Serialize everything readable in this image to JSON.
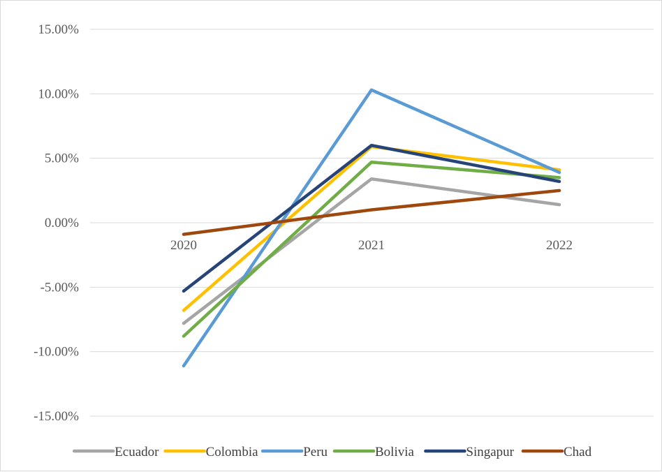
{
  "chart_data": {
    "type": "line",
    "title": "",
    "xlabel": "",
    "ylabel": "",
    "categories": [
      "2020",
      "2021",
      "2022"
    ],
    "y_ticks": [
      "15.00%",
      "10.00%",
      "5.00%",
      "0.00%",
      "-5.00%",
      "-10.00%",
      "-15.00%"
    ],
    "ylim": [
      -15,
      15
    ],
    "y_unit": "%",
    "grid": true,
    "legend_position": "bottom",
    "series": [
      {
        "name": "Ecuador",
        "color": "#a5a5a5",
        "values": [
          -7.8,
          3.4,
          1.4
        ]
      },
      {
        "name": "Colombia",
        "color": "#ffc000",
        "values": [
          -6.8,
          5.9,
          4.1
        ]
      },
      {
        "name": "Peru",
        "color": "#5b9bd5",
        "values": [
          -11.1,
          10.3,
          3.9
        ]
      },
      {
        "name": "Bolivia",
        "color": "#70ad47",
        "values": [
          -8.8,
          4.7,
          3.5
        ]
      },
      {
        "name": "Singapur",
        "color": "#264478",
        "values": [
          -5.3,
          6.0,
          3.2
        ]
      },
      {
        "name": "Chad",
        "color": "#9e480e",
        "values": [
          -0.9,
          1.0,
          2.5
        ]
      }
    ]
  }
}
